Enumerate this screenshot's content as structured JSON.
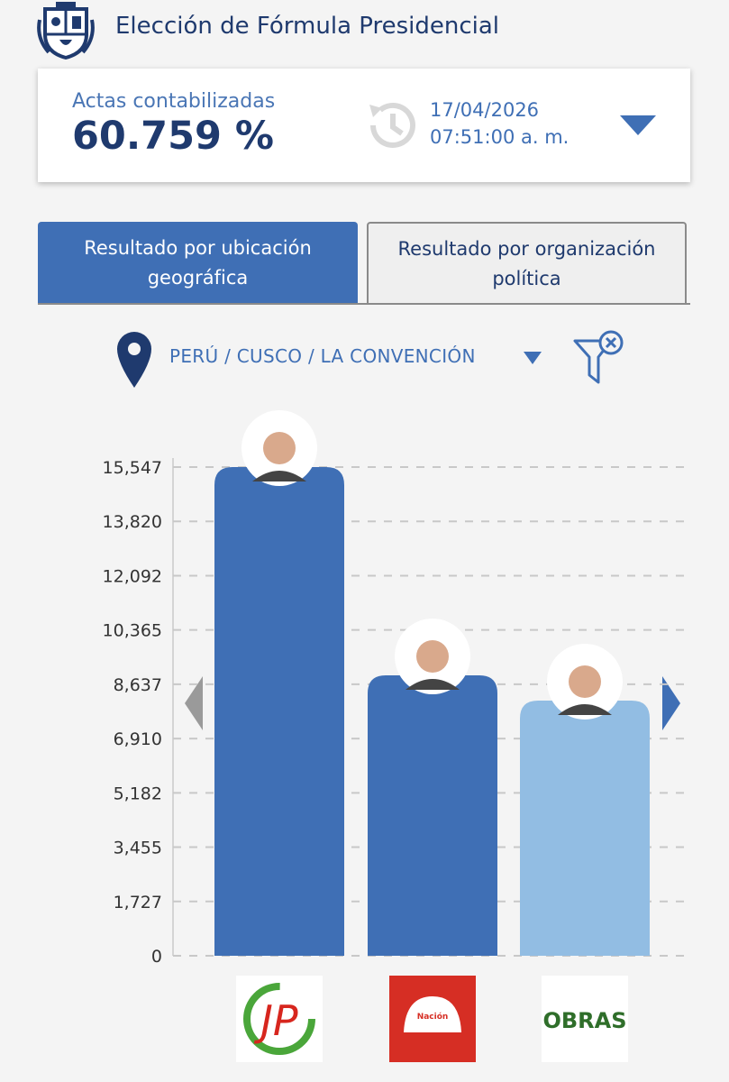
{
  "header": {
    "title": "Elección de Fórmula Presidencial"
  },
  "summary": {
    "label": "Actas contabilizadas",
    "value": "60.759 %",
    "date": "17/04/2026",
    "time": "07:51:00 a. m."
  },
  "tabs": [
    "Resultado por ubicación geográfica",
    "Resultado por organización política"
  ],
  "location": "PERÚ / CUSCO / LA CONVENCIÓN",
  "chart_data": {
    "type": "bar",
    "categories": [
      "JP",
      "Nación",
      "OBRAS"
    ],
    "values": [
      15547,
      8921,
      8118
    ],
    "colors": [
      "#3f6fb5",
      "#3f6fb5",
      "#92bde3"
    ],
    "ylim": [
      0,
      15547
    ],
    "yticks": [
      0,
      {
        "value": 1727,
        "label": "1,727"
      },
      {
        "value": 3455,
        "label": "3,455"
      },
      {
        "value": 5182,
        "label": "5,182"
      },
      {
        "value": 6910,
        "label": "6,910"
      },
      {
        "value": 8637,
        "label": "8,637"
      },
      {
        "value": 10365,
        "label": "10,365"
      },
      {
        "value": 12092,
        "label": "12,092"
      },
      {
        "value": 13820,
        "label": "13,820"
      },
      {
        "value": 15547,
        "label": "15,547"
      }
    ],
    "grid": true
  }
}
